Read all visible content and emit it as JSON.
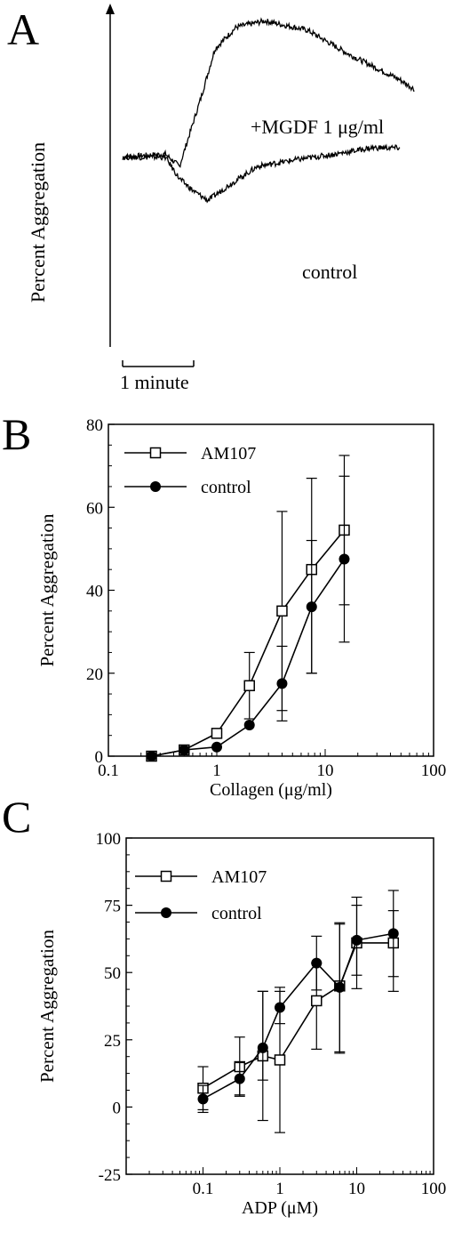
{
  "panels": {
    "a": {
      "label": "A",
      "ylabel": "Percent Aggregation",
      "scale_label": "1 minute",
      "trace_labels": [
        "+MGDF 1 μg/ml",
        "control"
      ]
    },
    "b": {
      "label": "B"
    },
    "c": {
      "label": "C"
    }
  },
  "chart_data": [
    {
      "type": "line",
      "panel": "A",
      "title": "",
      "xlabel": "",
      "ylabel": "Percent Aggregation",
      "axes_ticks": false,
      "scale_bar": "1 minute",
      "x_unit": "minutes",
      "series": [
        {
          "name": "+MGDF 1 μg/ml",
          "x": [
            0,
            0.6,
            0.8,
            1.1,
            1.3,
            1.6,
            2.0,
            2.6,
            3.2,
            3.9,
            4.1
          ],
          "y": [
            0.55,
            0.56,
            0.52,
            0.74,
            0.9,
            0.97,
            0.99,
            0.96,
            0.88,
            0.8,
            0.77
          ]
        },
        {
          "name": "control",
          "x": [
            0,
            0.6,
            0.8,
            1.0,
            1.2,
            1.5,
            1.9,
            2.4,
            3.0,
            3.5,
            3.9
          ],
          "y": [
            0.55,
            0.55,
            0.48,
            0.44,
            0.41,
            0.46,
            0.52,
            0.54,
            0.56,
            0.58,
            0.58
          ]
        }
      ]
    },
    {
      "type": "line",
      "panel": "B",
      "title": "",
      "xlabel": "Collagen (μg/ml)",
      "ylabel": "Percent Aggregation",
      "xscale": "log",
      "xlim": [
        0.1,
        100
      ],
      "ylim": [
        0,
        80
      ],
      "xticks": [
        "0.1",
        "1",
        "10",
        "100"
      ],
      "yticks": [
        "0",
        "20",
        "40",
        "60",
        "80"
      ],
      "legend": "top-left",
      "series": [
        {
          "name": "AM107",
          "marker": "open-square",
          "x": [
            0.25,
            0.5,
            1,
            2,
            4,
            7.5,
            15
          ],
          "y": [
            0,
            1.5,
            5.5,
            17,
            35,
            45,
            54.5
          ],
          "err_up": [
            0,
            0,
            0,
            8,
            24,
            22,
            18
          ],
          "err_down": [
            0,
            0,
            0,
            8,
            24,
            25,
            18
          ]
        },
        {
          "name": "control",
          "marker": "filled-circle",
          "x": [
            0.25,
            0.5,
            1,
            2,
            4,
            7.5,
            15
          ],
          "y": [
            0,
            1.5,
            2.2,
            7.5,
            17.5,
            36,
            47.5
          ],
          "err_up": [
            0,
            0,
            0,
            0,
            9,
            16,
            20
          ],
          "err_down": [
            0,
            0,
            0,
            0,
            9,
            16,
            20
          ]
        }
      ]
    },
    {
      "type": "line",
      "panel": "C",
      "title": "",
      "xlabel": "ADP (μM)",
      "ylabel": "Percent Aggregation",
      "xscale": "log",
      "xlim": [
        0.01,
        100
      ],
      "ylim": [
        -25,
        100
      ],
      "xticks": [
        "0.1",
        "1",
        "10",
        "100"
      ],
      "yticks": [
        "-25",
        "0",
        "25",
        "50",
        "75",
        "100"
      ],
      "legend": "top-left",
      "series": [
        {
          "name": "AM107",
          "marker": "open-square",
          "x": [
            0.1,
            0.3,
            0.6,
            1,
            3,
            6,
            10,
            30
          ],
          "y": [
            7,
            15,
            19,
            17.5,
            39.5,
            45,
            61,
            61
          ],
          "err_up": [
            8,
            11,
            24,
            27,
            14,
            23,
            17,
            12
          ],
          "err_down": [
            8,
            11,
            24,
            27,
            18,
            25,
            17,
            18
          ]
        },
        {
          "name": "control",
          "marker": "filled-circle",
          "x": [
            0.1,
            0.3,
            0.6,
            1,
            3,
            6,
            10,
            30
          ],
          "y": [
            3,
            10.5,
            22,
            37,
            53.5,
            44.5,
            62,
            64.5
          ],
          "err_up": [
            5,
            6,
            21,
            6,
            10,
            24,
            13,
            16
          ],
          "err_down": [
            5,
            6,
            12,
            6,
            10,
            24,
            13,
            16
          ]
        }
      ]
    }
  ]
}
